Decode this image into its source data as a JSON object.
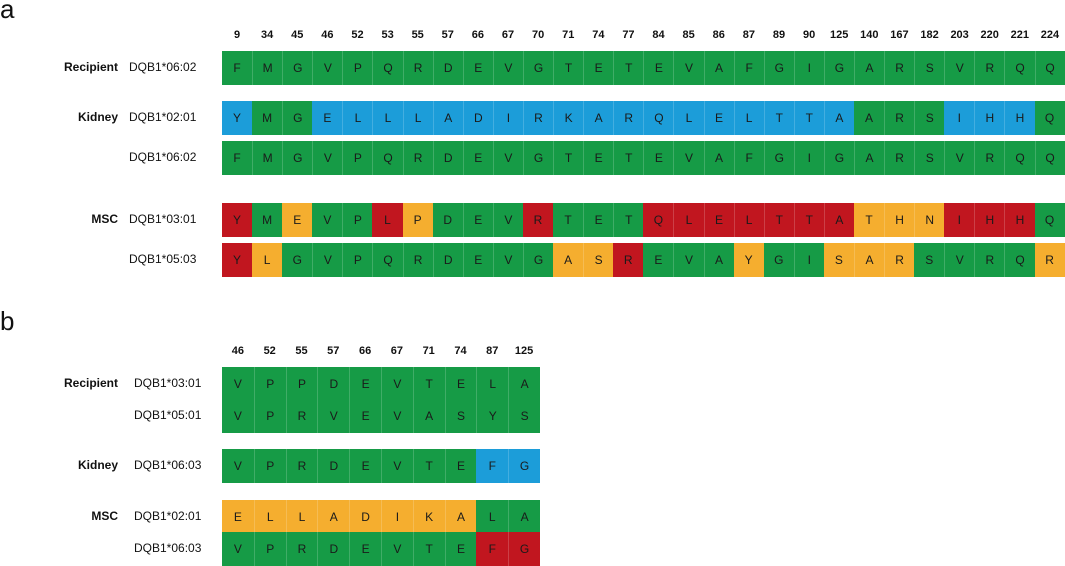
{
  "panels": {
    "a": {
      "letter": "a",
      "positions": [
        "9",
        "34",
        "45",
        "46",
        "52",
        "53",
        "55",
        "57",
        "66",
        "67",
        "70",
        "71",
        "74",
        "77",
        "84",
        "85",
        "86",
        "87",
        "89",
        "90",
        "125",
        "140",
        "167",
        "182",
        "203",
        "220",
        "221",
        "224"
      ],
      "rows": [
        {
          "group": "Recipient",
          "allele": "DQB1*06:02",
          "residues": [
            "F",
            "M",
            "G",
            "V",
            "P",
            "Q",
            "R",
            "D",
            "E",
            "V",
            "G",
            "T",
            "E",
            "T",
            "E",
            "V",
            "A",
            "F",
            "G",
            "I",
            "G",
            "A",
            "R",
            "S",
            "V",
            "R",
            "Q",
            "Q"
          ],
          "colors": [
            "g",
            "g",
            "g",
            "g",
            "g",
            "g",
            "g",
            "g",
            "g",
            "g",
            "g",
            "g",
            "g",
            "g",
            "g",
            "g",
            "g",
            "g",
            "g",
            "g",
            "g",
            "g",
            "g",
            "g",
            "g",
            "g",
            "g",
            "g"
          ]
        },
        {
          "group": "Kidney",
          "allele": "DQB1*02:01",
          "residues": [
            "Y",
            "M",
            "G",
            "E",
            "L",
            "L",
            "L",
            "A",
            "D",
            "I",
            "R",
            "K",
            "A",
            "R",
            "Q",
            "L",
            "E",
            "L",
            "T",
            "T",
            "A",
            "A",
            "R",
            "S",
            "I",
            "H",
            "H",
            "Q"
          ],
          "colors": [
            "b",
            "g",
            "g",
            "b",
            "b",
            "b",
            "b",
            "b",
            "b",
            "b",
            "b",
            "b",
            "b",
            "b",
            "b",
            "b",
            "b",
            "b",
            "b",
            "b",
            "b",
            "g",
            "g",
            "g",
            "b",
            "b",
            "b",
            "g"
          ]
        },
        {
          "group": "",
          "allele": "DQB1*06:02",
          "residues": [
            "F",
            "M",
            "G",
            "V",
            "P",
            "Q",
            "R",
            "D",
            "E",
            "V",
            "G",
            "T",
            "E",
            "T",
            "E",
            "V",
            "A",
            "F",
            "G",
            "I",
            "G",
            "A",
            "R",
            "S",
            "V",
            "R",
            "Q",
            "Q"
          ],
          "colors": [
            "g",
            "g",
            "g",
            "g",
            "g",
            "g",
            "g",
            "g",
            "g",
            "g",
            "g",
            "g",
            "g",
            "g",
            "g",
            "g",
            "g",
            "g",
            "g",
            "g",
            "g",
            "g",
            "g",
            "g",
            "g",
            "g",
            "g",
            "g"
          ]
        },
        {
          "group": "MSC",
          "allele": "DQB1*03:01",
          "residues": [
            "Y",
            "M",
            "E",
            "V",
            "P",
            "L",
            "P",
            "D",
            "E",
            "V",
            "R",
            "T",
            "E",
            "T",
            "Q",
            "L",
            "E",
            "L",
            "T",
            "T",
            "A",
            "T",
            "H",
            "N",
            "I",
            "H",
            "H",
            "Q"
          ],
          "colors": [
            "r",
            "g",
            "o",
            "g",
            "g",
            "r",
            "o",
            "g",
            "g",
            "g",
            "r",
            "g",
            "g",
            "g",
            "r",
            "r",
            "r",
            "r",
            "r",
            "r",
            "r",
            "o",
            "o",
            "o",
            "r",
            "r",
            "r",
            "g"
          ]
        },
        {
          "group": "",
          "allele": "DQB1*05:03",
          "residues": [
            "Y",
            "L",
            "G",
            "V",
            "P",
            "Q",
            "R",
            "D",
            "E",
            "V",
            "G",
            "A",
            "S",
            "R",
            "E",
            "V",
            "A",
            "Y",
            "G",
            "I",
            "S",
            "A",
            "R",
            "S",
            "V",
            "R",
            "Q",
            "R"
          ],
          "colors": [
            "r",
            "o",
            "g",
            "g",
            "g",
            "g",
            "g",
            "g",
            "g",
            "g",
            "g",
            "o",
            "o",
            "r",
            "g",
            "g",
            "g",
            "o",
            "g",
            "g",
            "o",
            "o",
            "o",
            "g",
            "g",
            "g",
            "g",
            "o"
          ]
        }
      ]
    },
    "b": {
      "letter": "b",
      "positions": [
        "46",
        "52",
        "55",
        "57",
        "66",
        "67",
        "71",
        "74",
        "87",
        "125"
      ],
      "rows": [
        {
          "group": "Recipient",
          "allele": "DQB1*03:01",
          "residues": [
            "V",
            "P",
            "P",
            "D",
            "E",
            "V",
            "T",
            "E",
            "L",
            "A"
          ],
          "colors": [
            "g",
            "g",
            "g",
            "g",
            "g",
            "g",
            "g",
            "g",
            "g",
            "g"
          ]
        },
        {
          "group": "",
          "allele": "DQB1*05:01",
          "residues": [
            "V",
            "P",
            "R",
            "V",
            "E",
            "V",
            "A",
            "S",
            "Y",
            "S"
          ],
          "colors": [
            "g",
            "g",
            "g",
            "g",
            "g",
            "g",
            "g",
            "g",
            "g",
            "g"
          ]
        },
        {
          "group": "Kidney",
          "allele": "DQB1*06:03",
          "residues": [
            "V",
            "P",
            "R",
            "D",
            "E",
            "V",
            "T",
            "E",
            "F",
            "G"
          ],
          "colors": [
            "g",
            "g",
            "g",
            "g",
            "g",
            "g",
            "g",
            "g",
            "b",
            "b"
          ]
        },
        {
          "group": "MSC",
          "allele": "DQB1*02:01",
          "residues": [
            "E",
            "L",
            "L",
            "A",
            "D",
            "I",
            "K",
            "A",
            "L",
            "A"
          ],
          "colors": [
            "o",
            "o",
            "o",
            "o",
            "o",
            "o",
            "o",
            "o",
            "g",
            "g"
          ]
        },
        {
          "group": "",
          "allele": "DQB1*06:03",
          "residues": [
            "V",
            "P",
            "R",
            "D",
            "E",
            "V",
            "T",
            "E",
            "F",
            "G"
          ],
          "colors": [
            "g",
            "g",
            "g",
            "g",
            "g",
            "g",
            "g",
            "g",
            "r",
            "r"
          ]
        }
      ]
    }
  },
  "palette": {
    "g": "#169B46",
    "b": "#1C9DD9",
    "r": "#C1161F",
    "o": "#F5AE2F"
  }
}
